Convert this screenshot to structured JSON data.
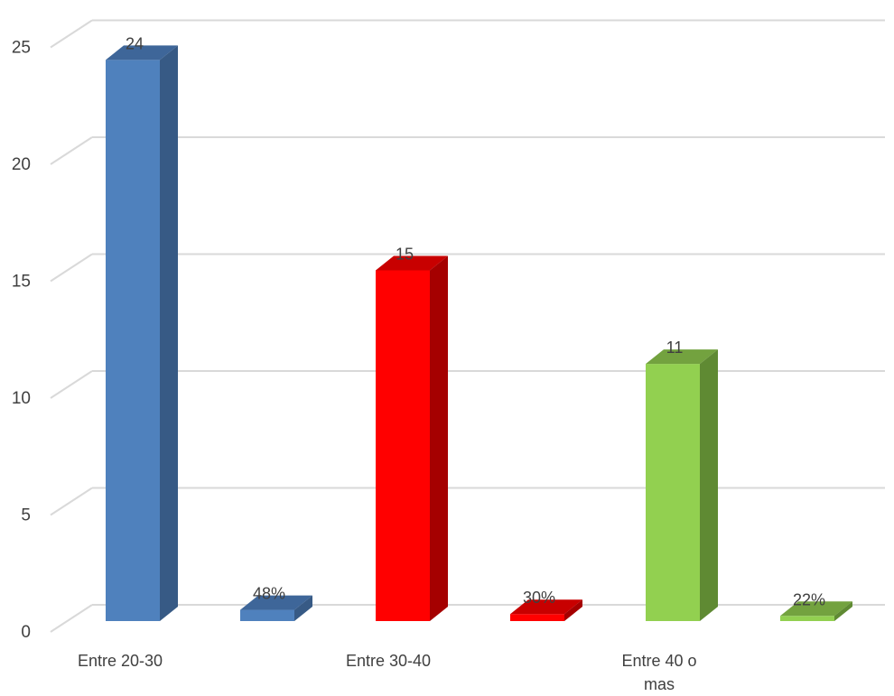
{
  "chart_data": {
    "type": "bar",
    "title": "",
    "xlabel": "",
    "ylabel": "",
    "ylim": [
      0,
      25
    ],
    "yticks": [
      "0",
      "5",
      "10",
      "15",
      "20",
      "25"
    ],
    "grid": true,
    "legend": "none",
    "categories": [
      {
        "label_lines": [
          "Entre 20-30"
        ]
      },
      {
        "label_lines": [
          "Entre 30-40"
        ]
      },
      {
        "label_lines": [
          "Entre 40 o",
          "mas"
        ]
      }
    ],
    "bars": [
      {
        "category": 0,
        "value": 24,
        "label": "24",
        "color": "#4f81bd",
        "side": "#375a85",
        "top": "#3e6699"
      },
      {
        "category": 0,
        "value": 0.48,
        "label": "48%",
        "color": "#4f81bd",
        "side": "#375a85",
        "top": "#3e6699"
      },
      {
        "category": 1,
        "value": 15,
        "label": "15",
        "color": "#ff0000",
        "side": "#a50000",
        "top": "#c80000"
      },
      {
        "category": 1,
        "value": 0.3,
        "label": "30%",
        "color": "#ff0000",
        "side": "#a50000",
        "top": "#c80000"
      },
      {
        "category": 2,
        "value": 11,
        "label": "11",
        "color": "#92d050",
        "side": "#5f8a33",
        "top": "#73a23f"
      },
      {
        "category": 2,
        "value": 0.22,
        "label": "22%",
        "color": "#92d050",
        "side": "#5f8a33",
        "top": "#73a23f"
      }
    ]
  }
}
